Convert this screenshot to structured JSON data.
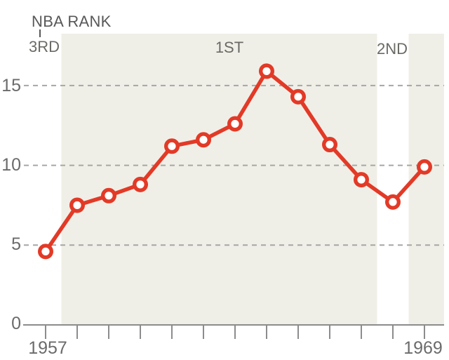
{
  "annotations": {
    "nba_rank_label": "NBA RANK"
  },
  "colors": {
    "line": "#e23a27",
    "marker_fill": "#ffffff",
    "band": "#f0efe7",
    "gridline": "#a6a6a6",
    "axis": "#8c8c8c",
    "axis_label_text": "#6b6b6b",
    "annotation_text": "#58585a",
    "background": "#ffffff"
  },
  "chart_data": {
    "type": "line",
    "x": [
      1957,
      1958,
      1959,
      1960,
      1961,
      1962,
      1963,
      1964,
      1965,
      1966,
      1967,
      1968,
      1969
    ],
    "values": [
      4.6,
      7.5,
      8.1,
      8.8,
      11.2,
      11.6,
      12.6,
      15.9,
      14.3,
      11.3,
      9.1,
      7.7,
      9.9
    ],
    "title": "",
    "xlabel": "",
    "ylabel": "",
    "ylim": [
      0,
      18.3
    ],
    "xlim": [
      1956.3,
      1969.62
    ],
    "yticks": [
      0,
      5,
      10,
      15
    ],
    "ytick_labels": [
      "0",
      "5",
      "10",
      "15"
    ],
    "xtick_years": [
      1957,
      1958,
      1959,
      1960,
      1961,
      1962,
      1963,
      1964,
      1965,
      1966,
      1967,
      1968,
      1969
    ],
    "xtick_labels_visible": [
      "1957",
      "1969"
    ],
    "grid": "horizontal dashed lines at 5, 10, 15",
    "legend": "none",
    "rank_bands": [
      {
        "label": "3RD",
        "shaded": false,
        "label_year": 1957
      },
      {
        "label": "1ST",
        "shaded": true,
        "start_year": 1957.5,
        "end_year": 1967.5,
        "label_year": 1962.8
      },
      {
        "label": "2ND",
        "shaded": false,
        "label_year": 1968
      },
      {
        "label": "",
        "shaded": true,
        "start_year": 1968.5,
        "end_year": 1969.62
      }
    ]
  }
}
